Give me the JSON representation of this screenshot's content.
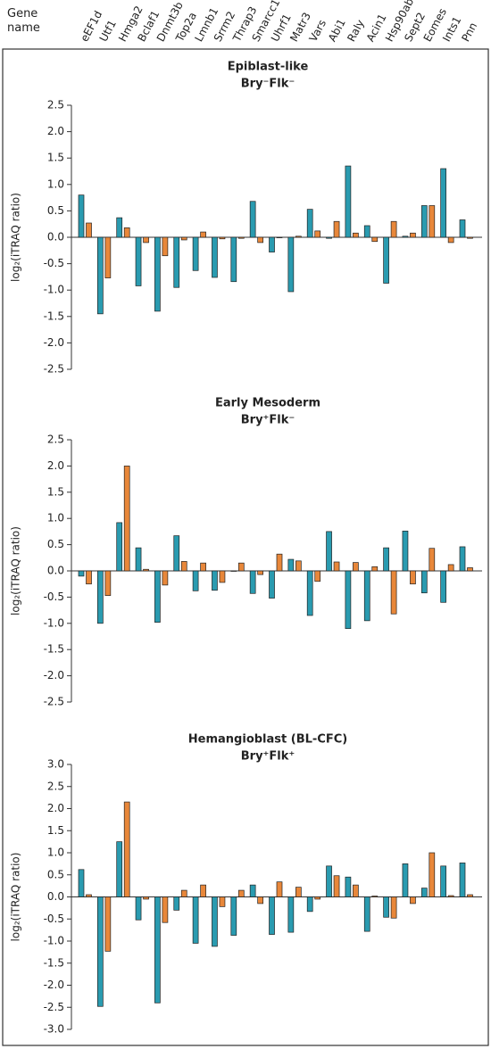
{
  "chart_data": [
    {
      "type": "bar",
      "x_label": "Gene name",
      "title": "Epiblast-like",
      "subtitle": "Bry⁻Flk⁻",
      "y_label": "log₂(iTRAQ ratio)",
      "categories": [
        "eEF1d",
        "Utf1",
        "Hmga2",
        "Bclaf1",
        "Dnmt3b",
        "Top2a",
        "Lmnb1",
        "Srrm2",
        "Thrap3",
        "Smarcc1",
        "Uhrf1",
        "Matr3",
        "Vars",
        "Abi1",
        "Raly",
        "Acin1",
        "Hsp90ab1",
        "Sept2",
        "Eomes",
        "Ints1",
        "Pnn"
      ],
      "series": [
        {
          "color": "#2a9bb0",
          "values": [
            0.8,
            -1.45,
            0.37,
            -0.92,
            -1.4,
            -0.95,
            -0.63,
            -0.76,
            -0.84,
            0.68,
            -0.28,
            -1.03,
            0.53,
            -0.02,
            1.35,
            0.22,
            -0.87,
            0.02,
            0.6,
            1.3,
            0.33
          ]
        },
        {
          "color": "#e8873a",
          "values": [
            0.27,
            -0.77,
            0.18,
            -0.1,
            -0.35,
            -0.05,
            0.1,
            -0.03,
            -0.02,
            -0.1,
            -0.01,
            0.02,
            0.12,
            0.3,
            0.08,
            -0.08,
            0.3,
            0.08,
            0.6,
            -0.1,
            -0.02
          ]
        }
      ],
      "ylim": [
        -2.5,
        2.5
      ],
      "yticks": [
        {
          "value": 2.5,
          "label": "2.5"
        },
        {
          "value": 2,
          "label": "2.0"
        },
        {
          "value": 1.5,
          "label": "1.5"
        },
        {
          "value": 1,
          "label": "1.0"
        },
        {
          "value": 0.5,
          "label": "0.5"
        },
        {
          "value": 0,
          "label": "0.0"
        },
        {
          "value": -0.5,
          "label": "-0.5"
        },
        {
          "value": -1,
          "label": "-1.0"
        },
        {
          "value": -1.5,
          "label": "-1.5"
        },
        {
          "value": -2,
          "label": "-2.0"
        },
        {
          "value": -2.5,
          "label": "-2.5"
        }
      ]
    },
    {
      "type": "bar",
      "title": "Early Mesoderm",
      "subtitle": "Bry⁺Flk⁻",
      "y_label": "log₂(iTRAQ ratio)",
      "series": [
        {
          "color": "#2a9bb0",
          "values": [
            -0.1,
            -1.0,
            0.92,
            0.44,
            -0.98,
            0.67,
            -0.38,
            -0.37,
            0.0,
            -0.43,
            -0.52,
            0.22,
            -0.85,
            0.75,
            -1.1,
            -0.95,
            0.44,
            0.76,
            -0.42,
            -0.6,
            0.46
          ]
        },
        {
          "color": "#e8873a",
          "values": [
            -0.25,
            -0.47,
            2.0,
            0.03,
            -0.27,
            0.18,
            0.15,
            -0.22,
            0.15,
            -0.07,
            0.32,
            0.19,
            -0.2,
            0.17,
            0.16,
            0.08,
            -0.82,
            -0.25,
            0.43,
            0.12,
            0.06
          ]
        }
      ],
      "ylim": [
        -2.5,
        2.5
      ],
      "yticks": [
        {
          "value": 2.5,
          "label": "2.5"
        },
        {
          "value": 2,
          "label": "2.0"
        },
        {
          "value": 1.5,
          "label": "1.5"
        },
        {
          "value": 1,
          "label": "1.0"
        },
        {
          "value": 0.5,
          "label": "0.5"
        },
        {
          "value": 0,
          "label": "0.0"
        },
        {
          "value": -0.5,
          "label": "-0.5"
        },
        {
          "value": -1,
          "label": "-1.0"
        },
        {
          "value": -1.5,
          "label": "-1.5"
        },
        {
          "value": -2,
          "label": "-2.0"
        },
        {
          "value": -2.5,
          "label": "-2.5"
        }
      ]
    },
    {
      "type": "bar",
      "title": "Hemangioblast (BL-CFC)",
      "subtitle": "Bry⁺Flk⁺",
      "y_label": "log₂(iTRAQ ratio)",
      "series": [
        {
          "color": "#2a9bb0",
          "values": [
            0.62,
            -2.48,
            1.25,
            -0.52,
            -2.4,
            -0.3,
            -1.05,
            -1.12,
            -0.87,
            0.27,
            -0.85,
            -0.8,
            -0.33,
            0.7,
            0.45,
            -0.78,
            -0.46,
            0.75,
            0.2,
            0.7,
            0.77
          ]
        },
        {
          "color": "#e8873a",
          "values": [
            0.05,
            -1.23,
            2.15,
            -0.05,
            -0.58,
            0.15,
            0.27,
            -0.22,
            0.15,
            -0.15,
            0.34,
            0.22,
            -0.05,
            0.48,
            0.27,
            0.02,
            -0.48,
            -0.15,
            1.0,
            0.03,
            0.05
          ]
        }
      ],
      "ylim": [
        -3,
        3
      ],
      "yticks": [
        {
          "value": 3,
          "label": "3.0"
        },
        {
          "value": 2.5,
          "label": "2.5"
        },
        {
          "value": 2,
          "label": "2.0"
        },
        {
          "value": 1.5,
          "label": "1.5"
        },
        {
          "value": 1,
          "label": "1.0"
        },
        {
          "value": 0.5,
          "label": "0.5"
        },
        {
          "value": 0,
          "label": "0.0"
        },
        {
          "value": -0.5,
          "label": "-0.5"
        },
        {
          "value": -1,
          "label": "-1.0"
        },
        {
          "value": -1.5,
          "label": "-1.5"
        },
        {
          "value": -2,
          "label": "-2.0"
        },
        {
          "value": -2.5,
          "label": "-2.5"
        },
        {
          "value": -3,
          "label": "-3.0"
        }
      ]
    }
  ]
}
